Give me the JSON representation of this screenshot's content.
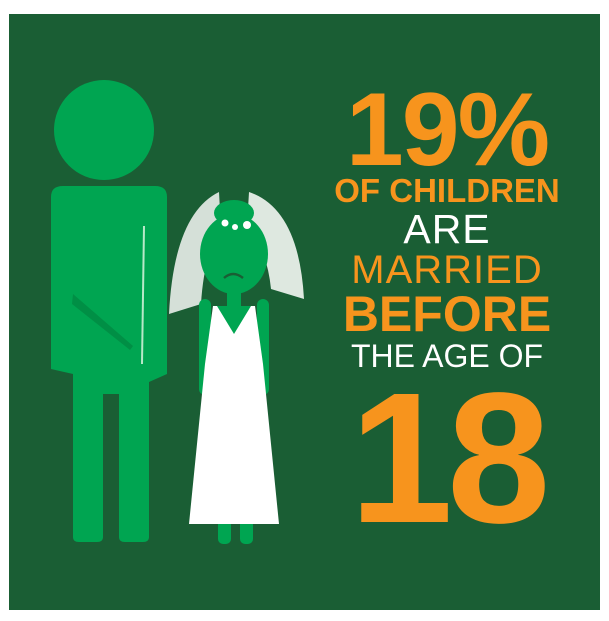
{
  "headline": {
    "percent": "19%",
    "line1": "OF CHILDREN",
    "line2": "ARE",
    "line3": "MARRIED",
    "line4": "BEFORE",
    "line5": "THE AGE OF",
    "age": "18"
  },
  "colors": {
    "background": "#1a5e34",
    "accent_orange": "#f7941d",
    "figure_green": "#00a551",
    "text_white": "#ffffff"
  },
  "illustration": {
    "man": "man-silhouette-icon",
    "bride": "child-bride-icon",
    "veil": "veil-icon",
    "flowers": "flower-icon"
  }
}
